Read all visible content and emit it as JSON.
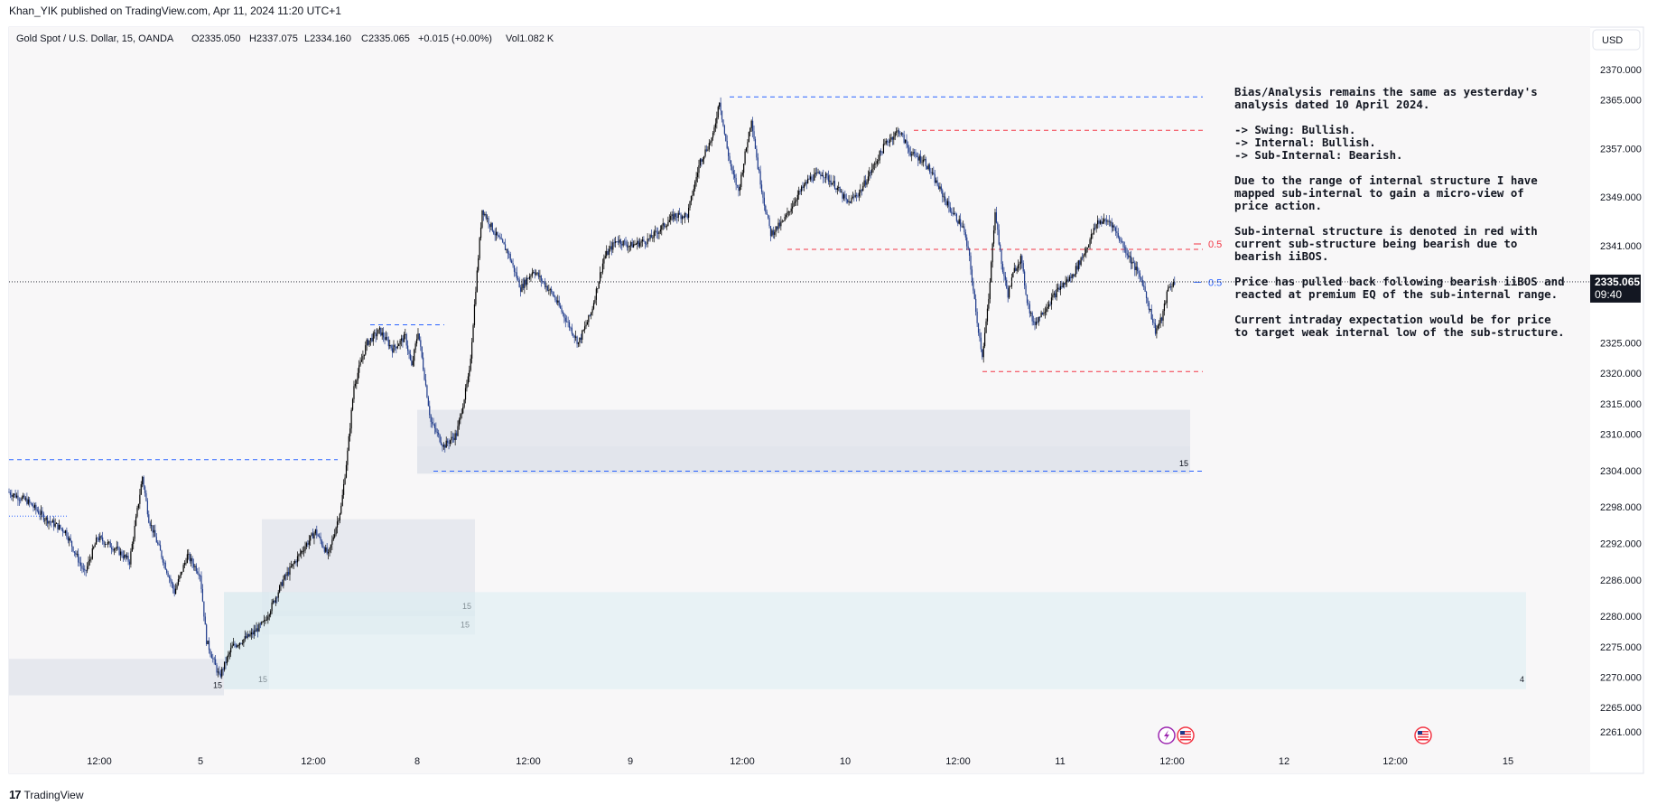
{
  "publisher_line": "Khan_YIK published on TradingView.com, Apr 11, 2024 11:20 UTC+1",
  "brand": "TradingView",
  "brand_icon": "tradingview-logo-icon",
  "currency": "USD",
  "legend": {
    "symbol": "Gold Spot / U.S. Dollar, 15, OANDA",
    "open": "O2335.050",
    "high": "H2337.075",
    "low": "L2334.160",
    "close": "C2335.065",
    "change": "+0.015 (+0.00%)",
    "volume": "Vol1.082 K"
  },
  "price_tag": {
    "price": "2335.065",
    "countdown": "09:40"
  },
  "colors": {
    "bullish": "#000000",
    "bearish": "#1e3a8a",
    "blue_line": "#2962ff",
    "red_line": "#f23645",
    "gray_zone": "#e0e3eb",
    "teal_zone": "#dbeef2",
    "background": "#f8f7f8"
  },
  "chart_data": {
    "type": "candlestick",
    "title": "Gold Spot / U.S. Dollar, 15, OANDA",
    "ylim": [
      2259,
      2372
    ],
    "y_ticks": [
      2370.0,
      2365.0,
      2357.0,
      2349.0,
      2341.0,
      2325.0,
      2320.0,
      2315.0,
      2310.0,
      2304.0,
      2298.0,
      2292.0,
      2286.0,
      2280.0,
      2275.0,
      2270.0,
      2265.0,
      2261.0
    ],
    "x_ticks": [
      "12:00",
      "5",
      "12:00",
      "8",
      "12:00",
      "9",
      "12:00",
      "10",
      "12:00",
      "11",
      "12:00",
      "12",
      "12:00",
      "15"
    ],
    "price_path": [
      [
        0,
        2300.5
      ],
      [
        3,
        2299
      ],
      [
        6,
        2296
      ],
      [
        9,
        2294
      ],
      [
        12,
        2287
      ],
      [
        14,
        2293
      ],
      [
        17,
        2291
      ],
      [
        19,
        2289
      ],
      [
        21,
        2303
      ],
      [
        22,
        2296
      ],
      [
        24,
        2290
      ],
      [
        26,
        2284
      ],
      [
        28,
        2290
      ],
      [
        30,
        2287
      ],
      [
        31,
        2276
      ],
      [
        33,
        2270
      ],
      [
        35,
        2275
      ],
      [
        38,
        2277
      ],
      [
        40,
        2279
      ],
      [
        43,
        2286
      ],
      [
        46,
        2291
      ],
      [
        48,
        2294
      ],
      [
        50,
        2290
      ],
      [
        52,
        2298
      ],
      [
        53,
        2307
      ],
      [
        54,
        2318
      ],
      [
        56,
        2325
      ],
      [
        58,
        2327
      ],
      [
        60,
        2324
      ],
      [
        62,
        2326
      ],
      [
        63,
        2321
      ],
      [
        64,
        2327
      ],
      [
        66,
        2312
      ],
      [
        68,
        2308
      ],
      [
        70,
        2310
      ],
      [
        72,
        2320
      ],
      [
        73,
        2334
      ],
      [
        74,
        2347
      ],
      [
        76,
        2343
      ],
      [
        78,
        2340
      ],
      [
        80,
        2334
      ],
      [
        82,
        2337
      ],
      [
        85,
        2333
      ],
      [
        87,
        2329
      ],
      [
        89,
        2325
      ],
      [
        91,
        2330
      ],
      [
        93,
        2339
      ],
      [
        95,
        2342
      ],
      [
        97,
        2341
      ],
      [
        100,
        2342
      ],
      [
        102,
        2344
      ],
      [
        104,
        2346
      ],
      [
        106,
        2346
      ],
      [
        108,
        2355
      ],
      [
        110,
        2359
      ],
      [
        111,
        2365
      ],
      [
        112,
        2358
      ],
      [
        113,
        2353
      ],
      [
        114,
        2350
      ],
      [
        115,
        2356
      ],
      [
        116,
        2362
      ],
      [
        117,
        2354
      ],
      [
        118,
        2348
      ],
      [
        119,
        2343
      ],
      [
        121,
        2345
      ],
      [
        123,
        2349
      ],
      [
        125,
        2352
      ],
      [
        127,
        2353
      ],
      [
        129,
        2351
      ],
      [
        131,
        2348
      ],
      [
        133,
        2350
      ],
      [
        135,
        2354
      ],
      [
        137,
        2358
      ],
      [
        139,
        2360
      ],
      [
        141,
        2356
      ],
      [
        143,
        2355
      ],
      [
        145,
        2351
      ],
      [
        147,
        2347
      ],
      [
        149,
        2344
      ],
      [
        150,
        2339
      ],
      [
        151,
        2330
      ],
      [
        152,
        2323
      ],
      [
        153,
        2332
      ],
      [
        154,
        2347
      ],
      [
        155,
        2338
      ],
      [
        156,
        2333
      ],
      [
        157,
        2337
      ],
      [
        158,
        2339
      ],
      [
        159,
        2332
      ],
      [
        160,
        2328
      ],
      [
        162,
        2331
      ],
      [
        164,
        2334
      ],
      [
        166,
        2336
      ],
      [
        168,
        2340
      ],
      [
        170,
        2345
      ],
      [
        172,
        2345
      ],
      [
        173,
        2343
      ],
      [
        175,
        2339
      ],
      [
        177,
        2335
      ],
      [
        178,
        2331
      ],
      [
        179,
        2327
      ],
      [
        180,
        2329
      ],
      [
        181,
        2334
      ],
      [
        182,
        2335
      ]
    ],
    "annotations": [
      {
        "kind": "line",
        "color": "blue",
        "price": 2365.5,
        "label": ""
      },
      {
        "kind": "line",
        "color": "red",
        "price": 2360.0,
        "label": ""
      },
      {
        "kind": "line",
        "color": "red",
        "price": 2340.4,
        "label": ""
      },
      {
        "kind": "line",
        "color": "red",
        "price": 2320.3,
        "label": ""
      },
      {
        "kind": "line",
        "color": "blue",
        "price": 2303.9,
        "label": ""
      },
      {
        "kind": "line",
        "color": "blue",
        "price": 2328.0,
        "label": ""
      },
      {
        "kind": "line",
        "color": "blue",
        "price": 2305.8,
        "label": ""
      },
      {
        "kind": "level",
        "color": "red",
        "price": 2341.3,
        "label": "0.5"
      },
      {
        "kind": "level",
        "color": "blue",
        "price": 2335.0,
        "label": "0.5"
      }
    ],
    "zones": [
      {
        "label": "15",
        "top": 2314.0,
        "bottom": 2303.5
      },
      {
        "label": "15",
        "top": 2308.0,
        "bottom": 2303.5
      },
      {
        "label": "15",
        "top": 2296.0,
        "bottom": 2280.0
      },
      {
        "label": "15",
        "top": 2281.0,
        "bottom": 2277.0
      },
      {
        "label": "15",
        "top": 2273.0,
        "bottom": 2267.0
      },
      {
        "label": "15",
        "top": 2284.0,
        "bottom": 2268.0
      },
      {
        "label": "4",
        "top": 2284.0,
        "bottom": 2268.0
      }
    ],
    "notes": [
      "Bias/Analysis remains the same as yesterday's",
      "analysis dated 10 April 2024.",
      "",
      "-> Swing: Bullish.",
      "-> Internal: Bullish.",
      "-> Sub-Internal: Bearish.",
      "",
      "Due to the range of internal structure I have",
      "mapped sub-internal to gain a micro-view of",
      "price action.",
      "",
      "Sub-internal structure is denoted in red with",
      "current sub-structure being bearish due to",
      "bearish iiBOS.",
      "",
      "Price has pulled back following bearish iiBOS and",
      "reacted at premium EQ of the sub-internal range.",
      "",
      "Current intraday expectation would be for price",
      "to target weak internal low of the sub-structure."
    ],
    "events": [
      {
        "name": "lightning-event-icon"
      },
      {
        "name": "us-flag-event-icon"
      },
      {
        "name": "us-flag-event-icon"
      }
    ]
  }
}
